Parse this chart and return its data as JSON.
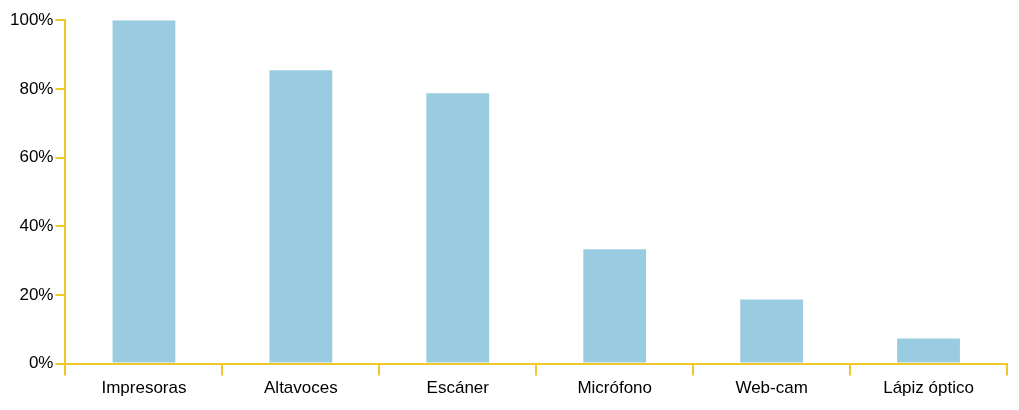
{
  "chart_data": {
    "type": "bar",
    "categories": [
      "Impresoras",
      "Altavoces",
      "Escáner",
      "Micrófono",
      "Web-cam",
      "Lápiz óptico"
    ],
    "values": [
      100,
      85.4,
      78.7,
      33.3,
      18.7,
      7.3
    ],
    "color": "#99cce0",
    "ylim": [
      0,
      100
    ],
    "yticks": [
      {
        "value": 0,
        "label": "0%"
      },
      {
        "value": 20,
        "label": "20%"
      },
      {
        "value": 40,
        "label": "40%"
      },
      {
        "value": 60,
        "label": "60%"
      },
      {
        "value": 80,
        "label": "80%"
      },
      {
        "value": 100,
        "label": "100%"
      }
    ],
    "grid": false,
    "legend": false
  }
}
